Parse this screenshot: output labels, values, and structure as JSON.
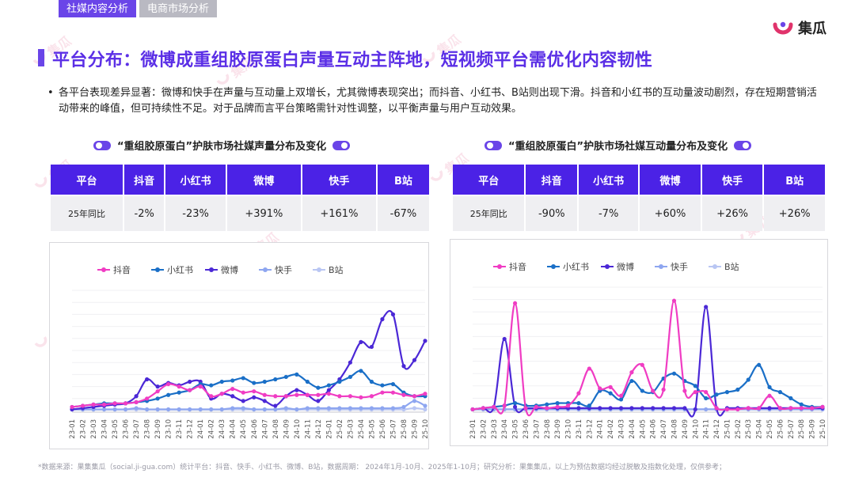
{
  "tabs": [
    {
      "label": "社媒内容分析",
      "active": true
    },
    {
      "label": "电商市场分析",
      "active": false
    }
  ],
  "logo": {
    "text": "集瓜",
    "icon": "jigua-logo-icon",
    "colors": [
      "#e0336b",
      "#6a45e8"
    ]
  },
  "watermark": {
    "text": "集瓜"
  },
  "title": "平台分布：微博成重组胶原蛋白声量互动主阵地，短视频平台需优化内容韧性",
  "description": {
    "bullet": "•",
    "text": "各平台表现差异显著：微博和快手在声量与互动量上双增长，尤其微博表现突出；而抖音、小红书、B站则出现下滑。抖音和小红书的互动量波动剧烈，存在短期营销活动带来的峰值，但可持续性不足。对于品牌而言平台策略需针对性调整，以平衡声量与用户互动效果。"
  },
  "left": {
    "heading": "“重组胶原蛋白”护肤市场社媒声量分布及变化",
    "table": {
      "headers": [
        "平台",
        "抖音",
        "小红书",
        "微博",
        "快手",
        "B站"
      ],
      "row_label": "25年同比",
      "values": [
        "-2%",
        "-23%",
        "+391%",
        "+161%",
        "-67%"
      ]
    }
  },
  "right": {
    "heading": "“重组胶原蛋白”护肤市场社媒互动量分布及变化",
    "table": {
      "headers": [
        "平台",
        "抖音",
        "小红书",
        "微博",
        "快手",
        "B站"
      ],
      "row_label": "25年同比",
      "values": [
        "-90%",
        "-7%",
        "+60%",
        "+26%",
        "+26%"
      ]
    }
  },
  "footnote": "*数据来源：果集集瓜（social.ji-gua.com）统计平台：抖音、快手、小红书、微博、B站，数据周期： 2024年1月-10月、2025年1-10月；研究分析：果集集瓜，以上为预估数据均经过脱敏及指数化处理，仅供参考；",
  "colors": {
    "accent": "#5b2fe6",
    "header_bg": "#4b22e6",
    "row_bg": "#efeff2"
  },
  "chart_data": [
    {
      "type": "line",
      "title": "“重组胶原蛋白”护肤市场社媒声量分布及变化",
      "legend_position": "top",
      "grid": false,
      "x": [
        "23-01",
        "23-02",
        "23-03",
        "23-04",
        "23-05",
        "23-06",
        "23-07",
        "23-08",
        "23-09",
        "23-10",
        "23-11",
        "23-12",
        "24-01",
        "24-02",
        "24-03",
        "24-04",
        "24-05",
        "24-06",
        "24-07",
        "24-08",
        "24-09",
        "24-10",
        "24-11",
        "24-12",
        "25-01",
        "25-02",
        "25-03",
        "25-04",
        "25-05",
        "25-06",
        "25-07",
        "25-08",
        "25-09",
        "25-10"
      ],
      "ylim": [
        0,
        100
      ],
      "series": [
        {
          "name": "抖音",
          "color": "#f03cc3",
          "values": [
            3,
            4,
            5,
            5,
            6,
            6,
            7,
            10,
            16,
            22,
            20,
            17,
            20,
            12,
            14,
            18,
            15,
            16,
            13,
            12,
            12,
            13,
            13,
            13,
            14,
            12,
            12,
            11,
            12,
            15,
            15,
            13,
            12,
            14
          ]
        },
        {
          "name": "小红书",
          "color": "#1a6fc7",
          "values": [
            3,
            4,
            5,
            6,
            6,
            6,
            7,
            8,
            10,
            13,
            15,
            17,
            22,
            21,
            24,
            25,
            27,
            23,
            24,
            26,
            28,
            30,
            24,
            19,
            21,
            24,
            28,
            33,
            24,
            21,
            22,
            15,
            12,
            12
          ]
        },
        {
          "name": "微博",
          "color": "#4b28d6",
          "values": [
            1,
            2,
            3,
            4,
            5,
            6,
            12,
            26,
            20,
            23,
            21,
            24,
            24,
            10,
            14,
            12,
            8,
            11,
            8,
            4,
            12,
            17,
            13,
            8,
            17,
            26,
            40,
            57,
            53,
            76,
            80,
            37,
            42,
            58
          ]
        },
        {
          "name": "快手",
          "color": "#8ea6f0",
          "values": [
            1,
            1,
            1,
            1,
            1,
            1,
            2,
            1,
            1,
            1,
            1,
            1,
            1,
            1,
            1,
            2,
            2,
            1,
            1,
            1,
            2,
            1,
            2,
            2,
            2,
            2,
            2,
            2,
            2,
            2,
            2,
            3,
            8,
            4
          ]
        },
        {
          "name": "B站",
          "color": "#b9c6f3",
          "values": [
            1,
            1,
            1,
            1,
            1,
            1,
            1,
            1,
            1,
            1,
            1,
            1,
            1,
            1,
            1,
            1,
            1,
            1,
            1,
            1,
            1,
            1,
            1,
            1,
            1,
            1,
            1,
            1,
            1,
            1,
            1,
            1,
            2,
            1
          ]
        }
      ]
    },
    {
      "type": "line",
      "title": "“重组胶原蛋白”护肤市场社媒互动量分布及变化",
      "legend_position": "top",
      "grid": false,
      "x": [
        "23-01",
        "23-02",
        "23-03",
        "23-04",
        "23-05",
        "23-06",
        "23-07",
        "23-08",
        "23-09",
        "23-10",
        "23-11",
        "23-12",
        "24-01",
        "24-02",
        "24-03",
        "24-04",
        "24-05",
        "24-06",
        "24-07",
        "24-08",
        "24-09",
        "24-10",
        "24-11",
        "24-12",
        "25-01",
        "25-02",
        "25-03",
        "25-04",
        "25-05",
        "25-06",
        "25-07",
        "25-08",
        "25-09",
        "25-10"
      ],
      "ylim": [
        0,
        100
      ],
      "series": [
        {
          "name": "抖音",
          "color": "#f03cc3",
          "values": [
            1,
            2,
            3,
            4,
            87,
            2,
            3,
            2,
            3,
            4,
            14,
            34,
            18,
            19,
            12,
            31,
            37,
            16,
            17,
            89,
            16,
            15,
            15,
            2,
            1,
            1,
            2,
            2,
            12,
            2,
            2,
            2,
            2,
            3
          ]
        },
        {
          "name": "小红书",
          "color": "#1a6fc7",
          "values": [
            1,
            2,
            3,
            4,
            6,
            4,
            4,
            5,
            6,
            6,
            6,
            4,
            16,
            14,
            9,
            24,
            16,
            15,
            26,
            30,
            24,
            20,
            10,
            13,
            15,
            17,
            25,
            37,
            19,
            15,
            10,
            5,
            3,
            3
          ]
        },
        {
          "name": "微博",
          "color": "#4b28d6",
          "values": [
            1,
            2,
            3,
            58,
            3,
            2,
            2,
            2,
            2,
            2,
            2,
            2,
            2,
            2,
            2,
            2,
            2,
            2,
            2,
            2,
            2,
            1,
            84,
            2,
            2,
            2,
            2,
            2,
            2,
            2,
            2,
            2,
            2,
            2
          ]
        },
        {
          "name": "快手",
          "color": "#8ea6f0",
          "values": [
            1,
            1,
            1,
            1,
            1,
            1,
            1,
            1,
            1,
            1,
            1,
            1,
            1,
            1,
            1,
            1,
            1,
            1,
            1,
            1,
            1,
            1,
            1,
            1,
            1,
            1,
            1,
            1,
            1,
            1,
            1,
            1,
            1,
            1
          ]
        },
        {
          "name": "B站",
          "color": "#b9c6f3",
          "values": [
            1,
            1,
            1,
            1,
            1,
            1,
            1,
            1,
            1,
            1,
            1,
            1,
            1,
            1,
            1,
            1,
            1,
            1,
            1,
            1,
            1,
            1,
            1,
            1,
            1,
            1,
            1,
            1,
            1,
            1,
            1,
            1,
            1,
            1
          ]
        }
      ]
    }
  ]
}
